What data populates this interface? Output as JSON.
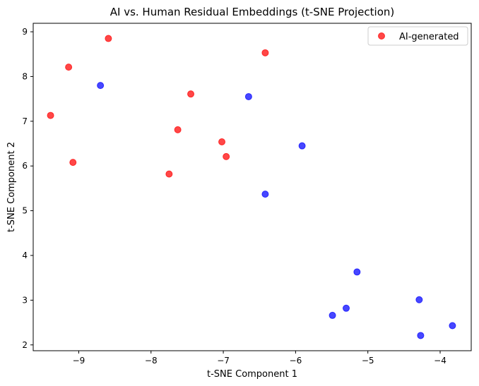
{
  "chart_data": {
    "type": "scatter",
    "title": "AI vs. Human Residual Embeddings (t-SNE Projection)",
    "xlabel": "t-SNE Component 1",
    "ylabel": "t-SNE Component 2",
    "xlim": [
      -9.63,
      -3.57
    ],
    "ylim": [
      1.87,
      9.19
    ],
    "xticks": [
      -9,
      -8,
      -7,
      -6,
      -5,
      -4
    ],
    "yticks": [
      2,
      3,
      4,
      5,
      6,
      7,
      8,
      9
    ],
    "xtick_labels": [
      "−9",
      "−8",
      "−7",
      "−6",
      "−5",
      "−4"
    ],
    "ytick_labels": [
      "2",
      "3",
      "4",
      "5",
      "6",
      "7",
      "8",
      "9"
    ],
    "grid": false,
    "legend_position": "top-right",
    "series": [
      {
        "name": "AI-generated",
        "color": "#ff0000",
        "x": [
          -8.59,
          -9.14,
          -9.39,
          -9.08,
          -7.45,
          -7.63,
          -7.75,
          -7.02,
          -6.96,
          -6.42
        ],
        "y": [
          8.85,
          8.21,
          7.13,
          6.08,
          7.61,
          6.81,
          5.82,
          6.54,
          6.21,
          8.53
        ]
      },
      {
        "color": "#0000ff",
        "x": [
          -8.7,
          -6.65,
          -5.91,
          -6.42,
          -5.15,
          -5.3,
          -5.49,
          -4.29,
          -4.27,
          -3.83
        ],
        "y": [
          7.8,
          7.55,
          6.45,
          5.37,
          3.63,
          2.82,
          2.66,
          3.01,
          2.21,
          2.43
        ]
      }
    ]
  }
}
